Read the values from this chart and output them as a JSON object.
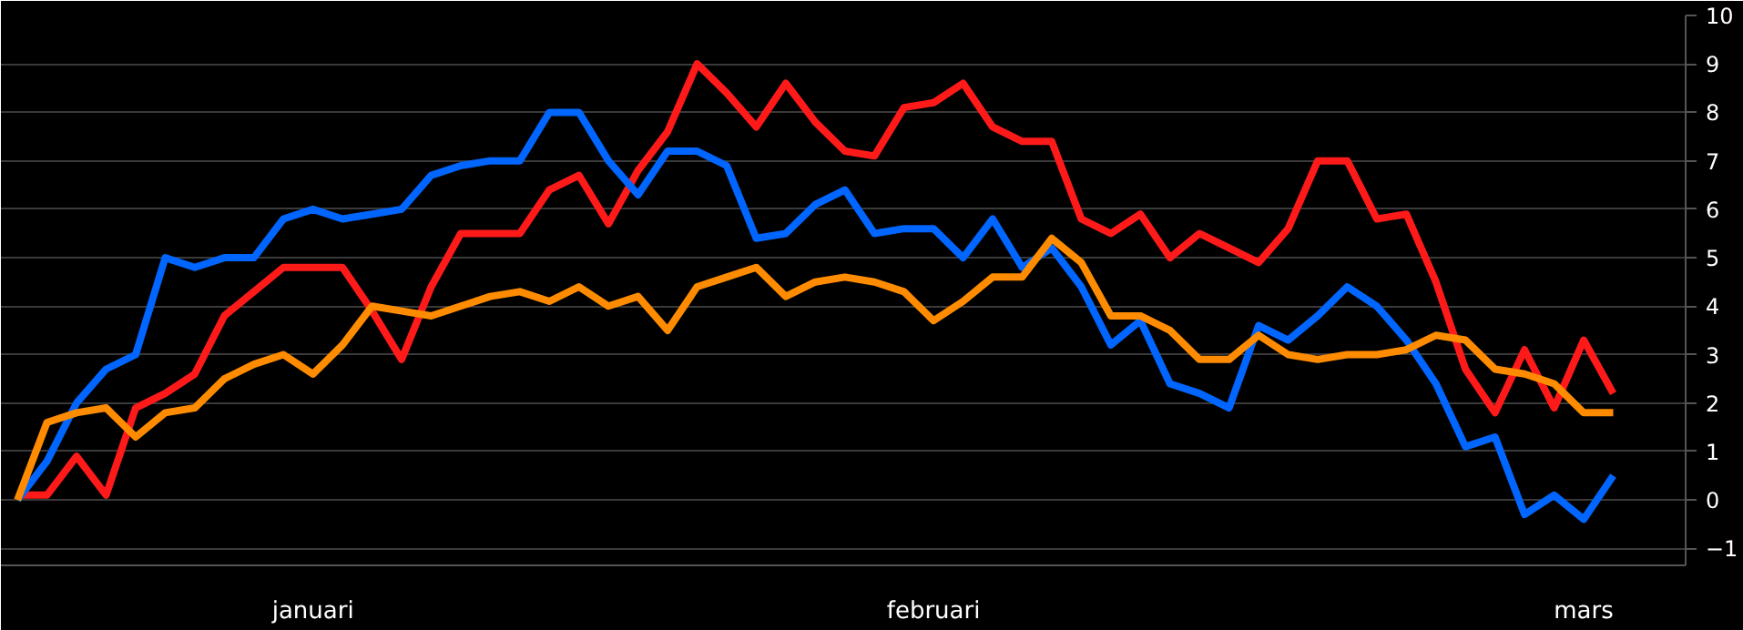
{
  "chart_data": {
    "type": "line",
    "categories": [
      null,
      null,
      null,
      null,
      null,
      null,
      null,
      null,
      null,
      null,
      "januari",
      null,
      null,
      null,
      null,
      null,
      null,
      null,
      null,
      null,
      null,
      null,
      null,
      null,
      null,
      null,
      null,
      null,
      null,
      null,
      null,
      "februari",
      null,
      null,
      null,
      null,
      null,
      null,
      null,
      null,
      null,
      null,
      null,
      null,
      null,
      null,
      null,
      null,
      null,
      null,
      null,
      null,
      null,
      "mars",
      null
    ],
    "series": [
      {
        "color": "#ff1a1a",
        "values": [
          0.1,
          0.1,
          0.9,
          0.1,
          1.9,
          2.2,
          2.6,
          3.8,
          4.3,
          4.8,
          4.8,
          4.8,
          3.9,
          2.9,
          4.4,
          5.5,
          5.5,
          5.5,
          6.4,
          6.7,
          5.7,
          6.8,
          7.6,
          9.0,
          8.4,
          7.7,
          8.6,
          7.8,
          7.2,
          7.1,
          8.1,
          8.2,
          8.6,
          7.7,
          7.4,
          7.4,
          5.8,
          5.5,
          5.9,
          5.0,
          5.5,
          5.2,
          4.9,
          5.6,
          7.0,
          7.0,
          5.8,
          5.9,
          4.5,
          2.7,
          1.8,
          3.1,
          1.9,
          3.3,
          2.2
        ]
      },
      {
        "color": "#0066ff",
        "values": [
          0.0,
          0.8,
          2.0,
          2.7,
          3.0,
          5.0,
          4.8,
          5.0,
          5.0,
          5.8,
          6.0,
          5.8,
          5.9,
          6.0,
          6.7,
          6.9,
          7.0,
          7.0,
          8.0,
          8.0,
          7.0,
          6.3,
          7.2,
          7.2,
          6.9,
          5.4,
          5.5,
          6.1,
          6.4,
          5.5,
          5.6,
          5.6,
          5.0,
          5.8,
          4.8,
          5.2,
          4.4,
          3.2,
          3.7,
          2.4,
          2.2,
          1.9,
          3.6,
          3.3,
          3.8,
          4.4,
          4.0,
          3.3,
          2.4,
          1.1,
          1.3,
          -0.3,
          0.1,
          -0.4,
          0.5
        ]
      },
      {
        "color": "#ff8c00",
        "values": [
          0.0,
          1.6,
          1.8,
          1.9,
          1.3,
          1.8,
          1.9,
          2.5,
          2.8,
          3.0,
          2.6,
          3.2,
          4.0,
          3.9,
          3.8,
          4.0,
          4.2,
          4.3,
          4.1,
          4.4,
          4.0,
          4.2,
          3.5,
          4.4,
          4.6,
          4.8,
          4.2,
          4.5,
          4.6,
          4.5,
          4.3,
          3.7,
          4.1,
          4.6,
          4.6,
          5.4,
          4.9,
          3.8,
          3.8,
          3.5,
          2.9,
          2.9,
          3.4,
          3.0,
          2.9,
          3.0,
          3.0,
          3.1,
          3.4,
          3.3,
          2.7,
          2.6,
          2.4,
          1.8,
          1.8
        ]
      }
    ],
    "ylim": [
      -1.35,
      10
    ],
    "yticks": [
      -1,
      0,
      1,
      2,
      3,
      4,
      5,
      6,
      7,
      8,
      9,
      10
    ],
    "grid": "y",
    "marker": "none",
    "line_style": "solid"
  }
}
